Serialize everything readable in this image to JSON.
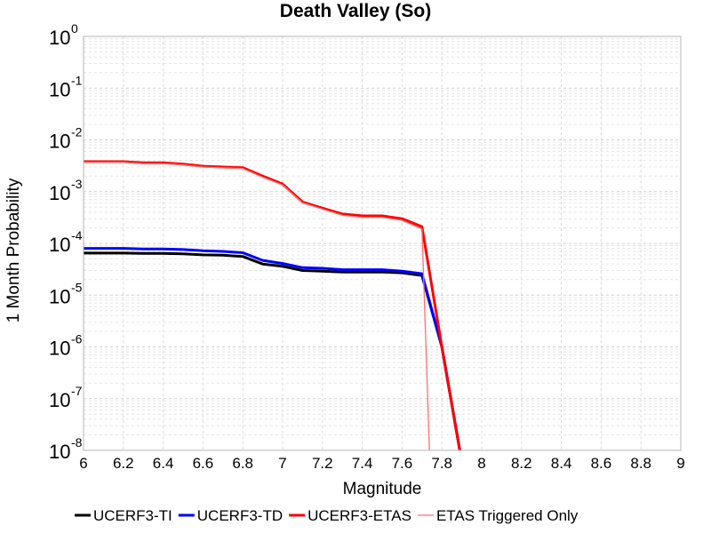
{
  "chart_data": {
    "type": "line",
    "title": "Death Valley (So)",
    "xlabel": "Magnitude",
    "ylabel": "1 Month Probability",
    "xlim": [
      6,
      9
    ],
    "ylim": [
      1e-08,
      1
    ],
    "yscale": "log",
    "grid": true,
    "legend_position": "bottom",
    "xticks": [
      "6",
      "6.2",
      "6.4",
      "6.6",
      "6.8",
      "7",
      "7.2",
      "7.4",
      "7.6",
      "7.8",
      "8",
      "8.2",
      "8.4",
      "8.6",
      "8.8",
      "9"
    ],
    "yticks": [
      {
        "base": "10",
        "exp": "0",
        "value": 1
      },
      {
        "base": "10",
        "exp": "-1",
        "value": 0.1
      },
      {
        "base": "10",
        "exp": "-2",
        "value": 0.01
      },
      {
        "base": "10",
        "exp": "-3",
        "value": 0.001
      },
      {
        "base": "10",
        "exp": "-4",
        "value": 0.0001
      },
      {
        "base": "10",
        "exp": "-5",
        "value": 1e-05
      },
      {
        "base": "10",
        "exp": "-6",
        "value": 1e-06
      },
      {
        "base": "10",
        "exp": "-7",
        "value": 1e-07
      },
      {
        "base": "10",
        "exp": "-8",
        "value": 1e-08
      }
    ],
    "series": [
      {
        "name": "UCERF3-TI",
        "color": "#000000",
        "width": 3,
        "x": [
          6.0,
          6.1,
          6.2,
          6.3,
          6.4,
          6.5,
          6.6,
          6.7,
          6.8,
          6.9,
          7.0,
          7.1,
          7.2,
          7.3,
          7.4,
          7.5,
          7.6,
          7.7,
          7.8,
          7.9
        ],
        "y": [
          6.5e-05,
          6.5e-05,
          6.5e-05,
          6.4e-05,
          6.4e-05,
          6.3e-05,
          6e-05,
          5.9e-05,
          5.6e-05,
          4e-05,
          3.6e-05,
          3e-05,
          2.9e-05,
          2.8e-05,
          2.8e-05,
          2.8e-05,
          2.7e-05,
          2.4e-05,
          1e-06,
          6e-09
        ]
      },
      {
        "name": "UCERF3-TD",
        "color": "#0000ff",
        "width": 3,
        "x": [
          6.0,
          6.1,
          6.2,
          6.3,
          6.4,
          6.5,
          6.6,
          6.7,
          6.8,
          6.9,
          7.0,
          7.1,
          7.2,
          7.3,
          7.4,
          7.5,
          7.6,
          7.7,
          7.8,
          7.9
        ],
        "y": [
          8e-05,
          8e-05,
          8e-05,
          7.8e-05,
          7.8e-05,
          7.6e-05,
          7.2e-05,
          7e-05,
          6.6e-05,
          4.7e-05,
          4.1e-05,
          3.4e-05,
          3.3e-05,
          3.1e-05,
          3.1e-05,
          3.1e-05,
          2.9e-05,
          2.6e-05,
          1e-06,
          6e-09
        ]
      },
      {
        "name": "UCERF3-ETAS",
        "color": "#ff0000",
        "width": 3,
        "x": [
          6.0,
          6.1,
          6.2,
          6.3,
          6.4,
          6.5,
          6.6,
          6.7,
          6.8,
          6.9,
          7.0,
          7.1,
          7.2,
          7.3,
          7.4,
          7.5,
          7.6,
          7.7,
          7.8,
          7.9
        ],
        "y": [
          0.0038,
          0.0038,
          0.0038,
          0.0036,
          0.0036,
          0.0034,
          0.0031,
          0.003,
          0.0029,
          0.002,
          0.0014,
          0.00063,
          0.00048,
          0.00037,
          0.00034,
          0.00034,
          0.0003,
          0.00021,
          1e-06,
          6e-09
        ]
      },
      {
        "name": "ETAS Triggered Only",
        "color": "#ff7070",
        "width": 1.3,
        "x": [
          6.0,
          6.1,
          6.2,
          6.3,
          6.4,
          6.5,
          6.6,
          6.7,
          6.8,
          6.9,
          7.0,
          7.1,
          7.2,
          7.3,
          7.4,
          7.5,
          7.6,
          7.7,
          7.74
        ],
        "y": [
          0.0037,
          0.0037,
          0.0037,
          0.0035,
          0.0035,
          0.0033,
          0.003,
          0.0029,
          0.0028,
          0.0019,
          0.00135,
          0.00061,
          0.00046,
          0.00035,
          0.00032,
          0.00032,
          0.00028,
          0.00019,
          5e-09
        ]
      }
    ]
  }
}
